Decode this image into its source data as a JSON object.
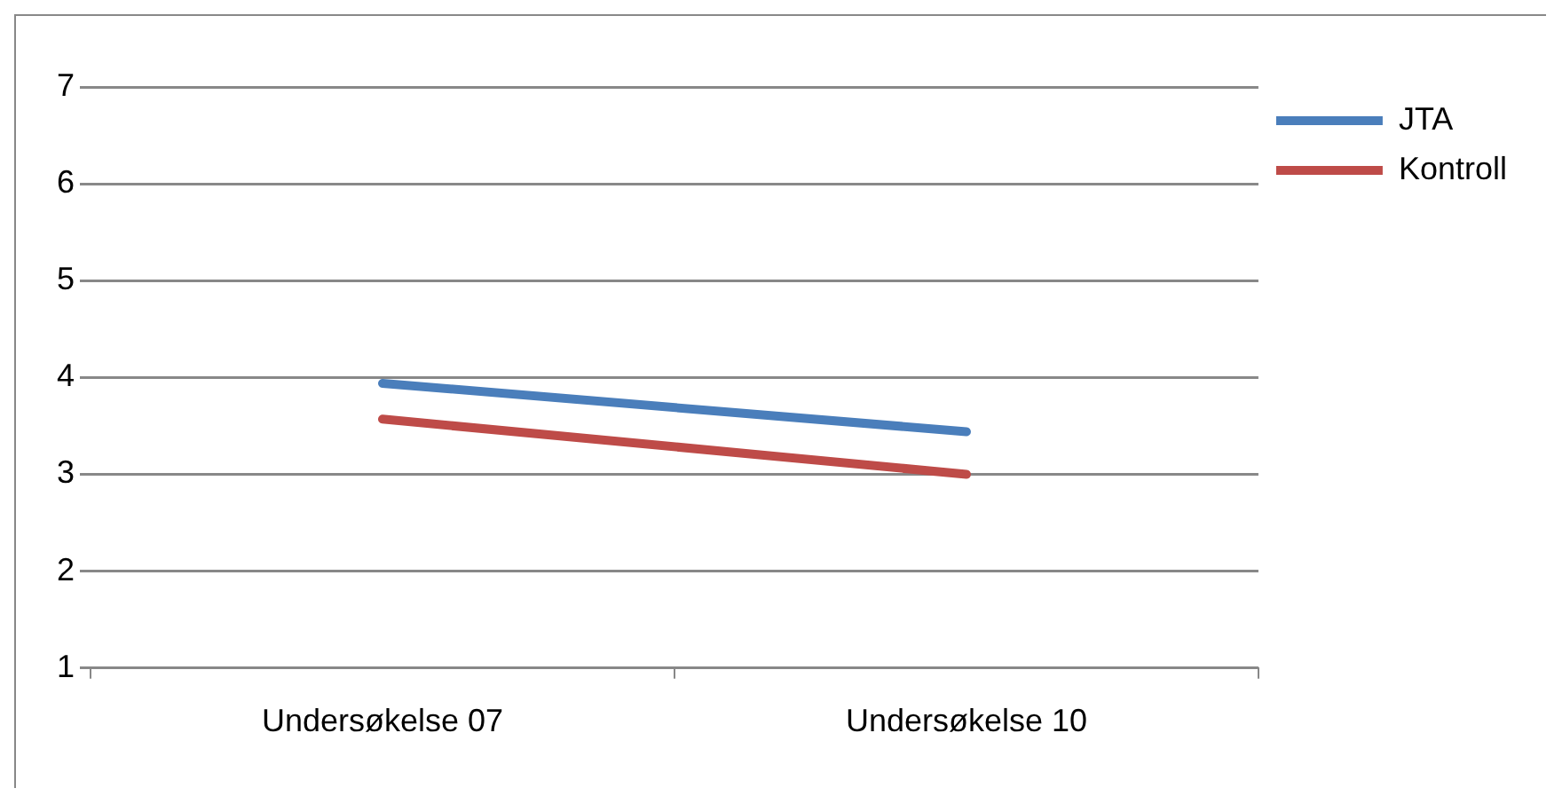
{
  "chart_data": {
    "type": "line",
    "categories": [
      "Undersøkelse 07",
      "Undersøkelse 10"
    ],
    "series": [
      {
        "name": "JTA",
        "color": "#4a7ebb",
        "values": [
          3.94,
          3.44
        ]
      },
      {
        "name": "Kontroll",
        "color": "#be4b48",
        "values": [
          3.57,
          3.0
        ]
      }
    ],
    "ylim": [
      1,
      7
    ],
    "yticks": [
      1,
      2,
      3,
      4,
      5,
      6,
      7
    ],
    "grid": "y",
    "legend": "right",
    "marker": "none",
    "line_style": "solid"
  }
}
